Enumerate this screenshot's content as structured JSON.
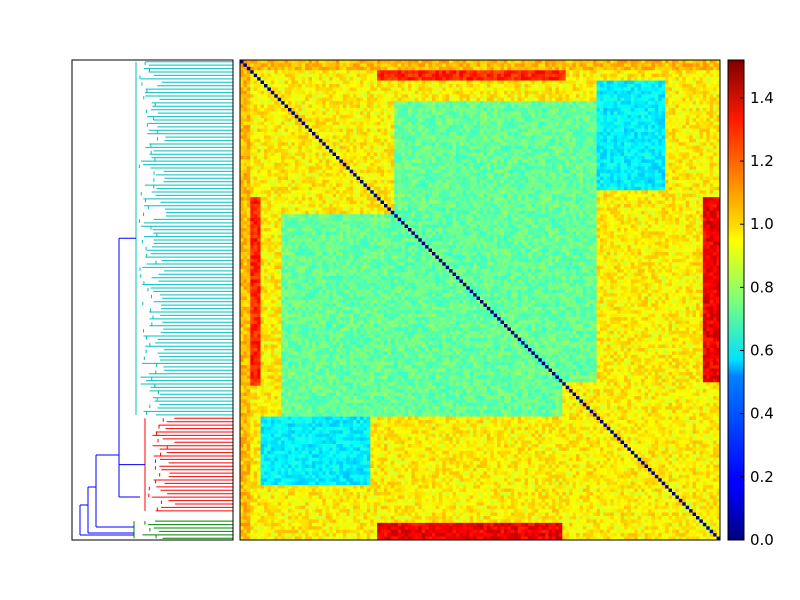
{
  "chart_data": {
    "type": "heatmap",
    "title": "",
    "xlabel": "",
    "ylabel": "",
    "matrix_size": 140,
    "diagonal_value": 0.0,
    "value_range": [
      0.0,
      1.52
    ],
    "colormap": "jet",
    "grid": false,
    "dendrogram": {
      "orientation": "left",
      "clusters": [
        {
          "color": "#00bfbf",
          "leaf_start": 0,
          "leaf_end": 104
        },
        {
          "color": "#ff0000",
          "leaf_start": 104,
          "leaf_end": 132
        },
        {
          "color": "#008000",
          "leaf_start": 134,
          "leaf_end": 140
        }
      ],
      "link_color": "#0000ff"
    },
    "blocks": [
      {
        "rows": [
          45,
          104
        ],
        "cols": [
          12,
          94
        ],
        "value": 0.72
      },
      {
        "rows": [
          104,
          124
        ],
        "cols": [
          6,
          38
        ],
        "value": 0.55
      },
      {
        "rows": [
          135,
          140
        ],
        "cols": [
          40,
          94
        ],
        "value": 1.35
      },
      {
        "rows": [
          40,
          95
        ],
        "cols": [
          1,
          6
        ],
        "value": 1.28
      },
      {
        "rows": [
          0,
          3
        ],
        "cols": [
          0,
          140
        ],
        "value": 1.05
      }
    ],
    "colorbar": {
      "ticks": [
        0.0,
        0.2,
        0.4,
        0.6,
        0.8,
        1.0,
        1.2,
        1.4
      ],
      "tick_labels": [
        "0.0",
        "0.2",
        "0.4",
        "0.6",
        "0.8",
        "1.0",
        "1.2",
        "1.4"
      ],
      "min": 0.0,
      "max": 1.52
    }
  }
}
